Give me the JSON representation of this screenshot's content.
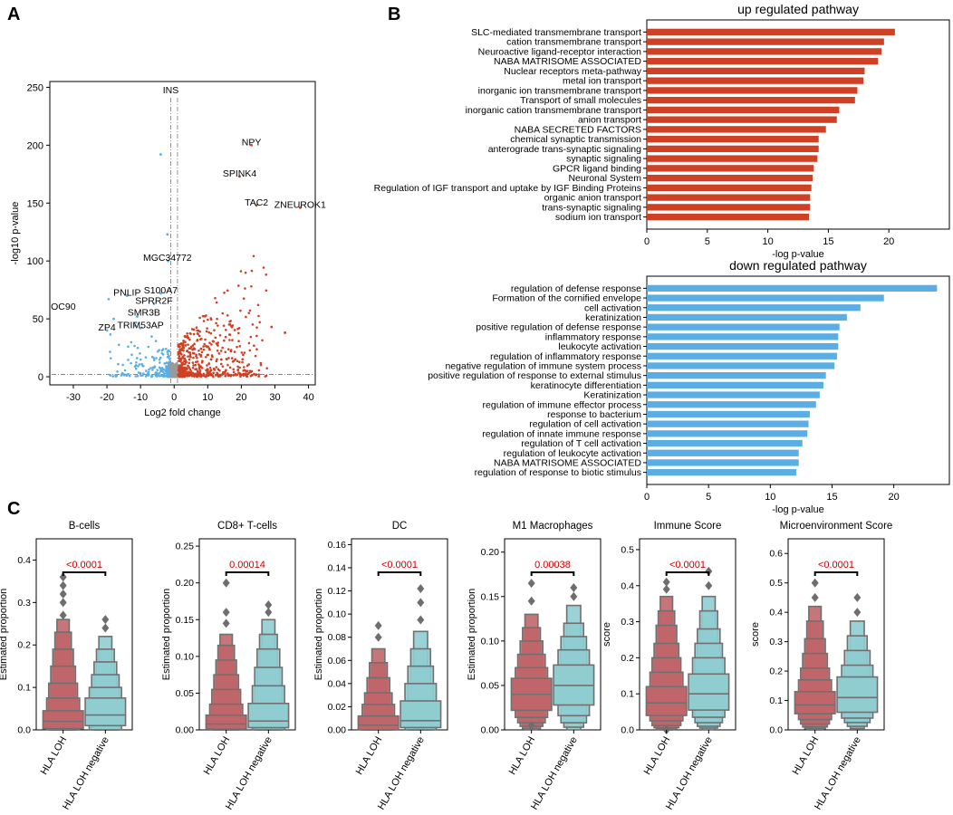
{
  "panel_labels": [
    "A",
    "B",
    "C"
  ],
  "colors": {
    "up": "#cf4125",
    "down": "#5aaee4",
    "ns": "#9a9a9a",
    "loh_fill": "#c0666a",
    "neg_fill": "#8fcdd1",
    "box_edge": "#707070",
    "pval": "#cc0000"
  },
  "chart_data": [
    {
      "id": "volcano",
      "type": "scatter",
      "title": "",
      "xlabel": "Log2 fold change",
      "ylabel": "-log10 p-value",
      "xlim": [
        -37,
        42
      ],
      "ylim": [
        -7,
        255
      ],
      "xticks": [
        -30,
        -20,
        -10,
        0,
        10,
        20,
        30,
        40
      ],
      "yticks": [
        0,
        50,
        100,
        150,
        200,
        250
      ],
      "threshold_lines": {
        "x": [
          -1,
          1
        ],
        "y": 2
      },
      "labels": [
        {
          "text": "INS",
          "x": -1,
          "y": 245
        },
        {
          "text": "NPY",
          "x": 23,
          "y": 200
        },
        {
          "text": "SPINK4",
          "x": 19.5,
          "y": 173
        },
        {
          "text": "TAC2",
          "x": 24.5,
          "y": 148
        },
        {
          "text": "ZNEUROK1",
          "x": 37.5,
          "y": 146
        },
        {
          "text": "MGC34772",
          "x": -2,
          "y": 100
        },
        {
          "text": "S100A7",
          "x": -4,
          "y": 72
        },
        {
          "text": "PNLIP",
          "x": -14,
          "y": 70
        },
        {
          "text": "SPRR2F",
          "x": -6,
          "y": 63
        },
        {
          "text": "OC90",
          "x": -33,
          "y": 58
        },
        {
          "text": "SMR3B",
          "x": -9,
          "y": 53
        },
        {
          "text": "TRIM53AP",
          "x": -10,
          "y": 42
        },
        {
          "text": "ZP4",
          "x": -20,
          "y": 40
        }
      ],
      "highlight_points": [
        {
          "x": 23,
          "y": 200,
          "group": "up"
        },
        {
          "x": 19.5,
          "y": 173,
          "group": "up"
        },
        {
          "x": 24.5,
          "y": 148,
          "group": "up"
        },
        {
          "x": 37.5,
          "y": 146,
          "group": "up"
        },
        {
          "x": 29,
          "y": 43,
          "group": "up"
        },
        {
          "x": 33,
          "y": 38,
          "group": "up"
        },
        {
          "x": -4,
          "y": 192,
          "group": "down"
        },
        {
          "x": -2,
          "y": 123,
          "group": "down"
        },
        {
          "x": -1.8,
          "y": 100,
          "group": "down"
        },
        {
          "x": -4,
          "y": 72,
          "group": "down"
        },
        {
          "x": -14,
          "y": 70,
          "group": "down"
        },
        {
          "x": -6,
          "y": 63,
          "group": "down"
        },
        {
          "x": -11,
          "y": 52,
          "group": "down"
        },
        {
          "x": -18,
          "y": 50,
          "group": "down"
        },
        {
          "x": -20,
          "y": 40,
          "group": "down"
        },
        {
          "x": -10,
          "y": 42,
          "group": "down"
        }
      ],
      "cluster_counts": {
        "up": 560,
        "down": 170,
        "ns": 650
      }
    },
    {
      "id": "up-pathway",
      "type": "bar",
      "orientation": "horizontal",
      "title": "up regulated pathway",
      "xlabel": "-log p-value",
      "xlim": [
        0,
        25
      ],
      "xticks": [
        0,
        5,
        10,
        15,
        20
      ],
      "categories": [
        "SLC-mediated transmembrane transport",
        "cation transmembrane transport",
        "Neuroactive ligand-receptor interaction",
        "NABA MATRISOME ASSOCIATED",
        "Nuclear receptors meta-pathway",
        "metal ion transport",
        "inorganic ion transmembrane transport",
        "Transport of small molecules",
        "inorganic cation transmembrane transport",
        "anion transport",
        "NABA SECRETED FACTORS",
        "chemical synaptic transmission",
        "anterograde trans-synaptic signaling",
        "synaptic signaling",
        "GPCR ligand binding",
        "Neuronal System",
        "Regulation of  IGF transport and uptake by IGF Binding Proteins",
        "organic anion transport",
        "trans-synaptic signaling",
        "sodium ion transport"
      ],
      "values": [
        20.5,
        19.6,
        19.4,
        19.1,
        18.0,
        17.9,
        17.4,
        17.2,
        15.9,
        15.7,
        14.8,
        14.2,
        14.2,
        14.1,
        13.8,
        13.7,
        13.6,
        13.5,
        13.5,
        13.4
      ]
    },
    {
      "id": "down-pathway",
      "type": "bar",
      "orientation": "horizontal",
      "title": "down regulated pathway",
      "xlabel": "-log p-value",
      "xlim": [
        0,
        24.5
      ],
      "xticks": [
        0,
        5,
        10,
        15,
        20
      ],
      "categories": [
        "regulation of defense response",
        "Formation of the cornified envelope",
        "cell activation",
        "keratinization",
        "positive regulation of defense response",
        "inflammatory response",
        "leukocyte activation",
        "regulation of inflammatory response",
        "negative regulation of immune system process",
        "positive regulation of response to external stimulus",
        "keratinocyte differentiation",
        "Keratinization",
        "regulation of immune effector process",
        "response to bacterium",
        "regulation of cell activation",
        "regulation of innate immune response",
        "regulation of T cell activation",
        "regulation of leukocyte activation",
        "NABA MATRISOME ASSOCIATED",
        "regulation of response to biotic stimulus"
      ],
      "values": [
        23.5,
        19.2,
        17.3,
        16.2,
        15.6,
        15.5,
        15.5,
        15.4,
        15.2,
        14.5,
        14.3,
        14.0,
        13.7,
        13.2,
        13.1,
        13.0,
        12.6,
        12.3,
        12.3,
        12.1
      ]
    },
    {
      "id": "boxen-b-cells",
      "type": "boxen",
      "title": "B-cells",
      "ylabel": "Estimated proportion",
      "ylim": [
        0,
        0.45
      ],
      "yticks": [
        "0.0",
        "0.1",
        "0.2",
        "0.3",
        "0.4"
      ],
      "categories": [
        "HLA LOH",
        "HLA LOH negative"
      ],
      "pvalue": "<0.0001",
      "series": [
        {
          "name": "HLA LOH",
          "median": 0.02,
          "levels": [
            [
              0.003,
              0.045
            ],
            [
              0.0,
              0.075
            ],
            [
              0.0,
              0.11
            ],
            [
              0.0,
              0.15
            ],
            [
              0.0,
              0.19
            ],
            [
              0.0,
              0.23
            ],
            [
              0.0,
              0.26
            ]
          ],
          "outliers": [
            0.27,
            0.3,
            0.32,
            0.34,
            0.36
          ]
        },
        {
          "name": "HLA LOH negative",
          "median": 0.035,
          "levels": [
            [
              0.01,
              0.075
            ],
            [
              0.0,
              0.1
            ],
            [
              0.0,
              0.13
            ],
            [
              0.0,
              0.16
            ],
            [
              0.0,
              0.19
            ],
            [
              0.0,
              0.22
            ]
          ],
          "outliers": [
            0.24,
            0.26
          ]
        }
      ]
    },
    {
      "id": "boxen-cd8",
      "type": "boxen",
      "title": "CD8+ T-cells",
      "ylabel": "Estimated proportion",
      "ylim": [
        0,
        0.26
      ],
      "yticks": [
        "0.00",
        "0.05",
        "0.10",
        "0.15",
        "0.20",
        "0.25"
      ],
      "categories": [
        "HLA LOH",
        "HLA LOH negative"
      ],
      "pvalue": "0.00014",
      "series": [
        {
          "name": "HLA LOH",
          "median": 0.008,
          "levels": [
            [
              0.001,
              0.02
            ],
            [
              0.0,
              0.035
            ],
            [
              0.0,
              0.055
            ],
            [
              0.0,
              0.075
            ],
            [
              0.0,
              0.095
            ],
            [
              0.0,
              0.115
            ],
            [
              0.0,
              0.13
            ]
          ],
          "outliers": [
            0.145,
            0.16,
            0.2
          ]
        },
        {
          "name": "HLA LOH negative",
          "median": 0.012,
          "levels": [
            [
              0.003,
              0.036
            ],
            [
              0.0,
              0.06
            ],
            [
              0.0,
              0.085
            ],
            [
              0.0,
              0.11
            ],
            [
              0.0,
              0.13
            ],
            [
              0.0,
              0.15
            ]
          ],
          "outliers": [
            0.16,
            0.17
          ]
        }
      ]
    },
    {
      "id": "boxen-dc",
      "type": "boxen",
      "title": "DC",
      "ylabel": "Estimated proportion",
      "ylim": [
        0,
        0.165
      ],
      "yticks": [
        "0.00",
        "0.02",
        "0.04",
        "0.06",
        "0.08",
        "0.10",
        "0.12",
        "0.14",
        "0.16"
      ],
      "categories": [
        "HLA LOH",
        "HLA LOH negative"
      ],
      "pvalue": "<0.0001",
      "series": [
        {
          "name": "HLA LOH",
          "median": 0.004,
          "levels": [
            [
              0.0,
              0.012
            ],
            [
              0.0,
              0.022
            ],
            [
              0.0,
              0.032
            ],
            [
              0.0,
              0.045
            ],
            [
              0.0,
              0.058
            ],
            [
              0.0,
              0.07
            ]
          ],
          "outliers": [
            0.08,
            0.09
          ]
        },
        {
          "name": "HLA LOH negative",
          "median": 0.008,
          "levels": [
            [
              0.002,
              0.025
            ],
            [
              0.0,
              0.04
            ],
            [
              0.0,
              0.055
            ],
            [
              0.0,
              0.07
            ],
            [
              0.0,
              0.085
            ]
          ],
          "outliers": [
            0.095,
            0.11,
            0.122
          ]
        }
      ]
    },
    {
      "id": "boxen-m1",
      "type": "boxen",
      "title": "M1 Macrophages",
      "ylabel": "Estimated proportion",
      "ylim": [
        0,
        0.215
      ],
      "yticks": [
        "0.00",
        "0.05",
        "0.10",
        "0.15",
        "0.20"
      ],
      "categories": [
        "HLA LOH",
        "HLA LOH negative"
      ],
      "pvalue": "0.00038",
      "series": [
        {
          "name": "HLA LOH",
          "median": 0.04,
          "levels": [
            [
              0.022,
              0.058
            ],
            [
              0.014,
              0.07
            ],
            [
              0.008,
              0.085
            ],
            [
              0.004,
              0.1
            ],
            [
              0.001,
              0.115
            ],
            [
              0.0,
              0.13
            ]
          ],
          "outliers": [
            0.005,
            0.145,
            0.165
          ]
        },
        {
          "name": "HLA LOH negative",
          "median": 0.05,
          "levels": [
            [
              0.028,
              0.073
            ],
            [
              0.016,
              0.09
            ],
            [
              0.008,
              0.105
            ],
            [
              0.003,
              0.12
            ],
            [
              0.0,
              0.14
            ]
          ],
          "outliers": [
            0.15,
            0.16
          ]
        }
      ]
    },
    {
      "id": "boxen-immune",
      "type": "boxen",
      "title": "Immune Score",
      "ylabel": "score",
      "ylim": [
        0,
        0.53
      ],
      "yticks": [
        "0.0",
        "0.1",
        "0.2",
        "0.3",
        "0.4",
        "0.5"
      ],
      "categories": [
        "HLA LOH",
        "HLA LOH negative"
      ],
      "pvalue": "<0.0001",
      "series": [
        {
          "name": "HLA LOH",
          "median": 0.075,
          "levels": [
            [
              0.04,
              0.12
            ],
            [
              0.025,
              0.16
            ],
            [
              0.012,
              0.2
            ],
            [
              0.006,
              0.24
            ],
            [
              0.002,
              0.29
            ],
            [
              0.0,
              0.33
            ],
            [
              0.0,
              0.37
            ]
          ],
          "outliers": [
            0.0,
            0.39,
            0.41
          ]
        },
        {
          "name": "HLA LOH negative",
          "median": 0.1,
          "levels": [
            [
              0.055,
              0.155
            ],
            [
              0.035,
              0.2
            ],
            [
              0.02,
              0.24
            ],
            [
              0.01,
              0.28
            ],
            [
              0.005,
              0.33
            ],
            [
              0.0,
              0.37
            ]
          ],
          "outliers": [
            0.4,
            0.44
          ]
        }
      ]
    },
    {
      "id": "boxen-microenv",
      "type": "boxen",
      "title": "Microenvironment Score",
      "ylabel": "score",
      "ylim": [
        0,
        0.65
      ],
      "yticks": [
        "0.0",
        "0.1",
        "0.2",
        "0.3",
        "0.4",
        "0.5",
        "0.6"
      ],
      "categories": [
        "HLA LOH",
        "HLA LOH negative"
      ],
      "pvalue": "<0.0001",
      "series": [
        {
          "name": "HLA LOH",
          "median": 0.085,
          "levels": [
            [
              0.055,
              0.13
            ],
            [
              0.035,
              0.17
            ],
            [
              0.02,
              0.21
            ],
            [
              0.01,
              0.26
            ],
            [
              0.004,
              0.31
            ],
            [
              0.0,
              0.37
            ],
            [
              0.0,
              0.42
            ]
          ],
          "outliers": [
            0.45,
            0.5
          ]
        },
        {
          "name": "HLA LOH negative",
          "median": 0.11,
          "levels": [
            [
              0.06,
              0.18
            ],
            [
              0.04,
              0.22
            ],
            [
              0.025,
              0.27
            ],
            [
              0.012,
              0.32
            ],
            [
              0.005,
              0.37
            ]
          ],
          "outliers": [
            0.4,
            0.45
          ]
        }
      ]
    }
  ]
}
